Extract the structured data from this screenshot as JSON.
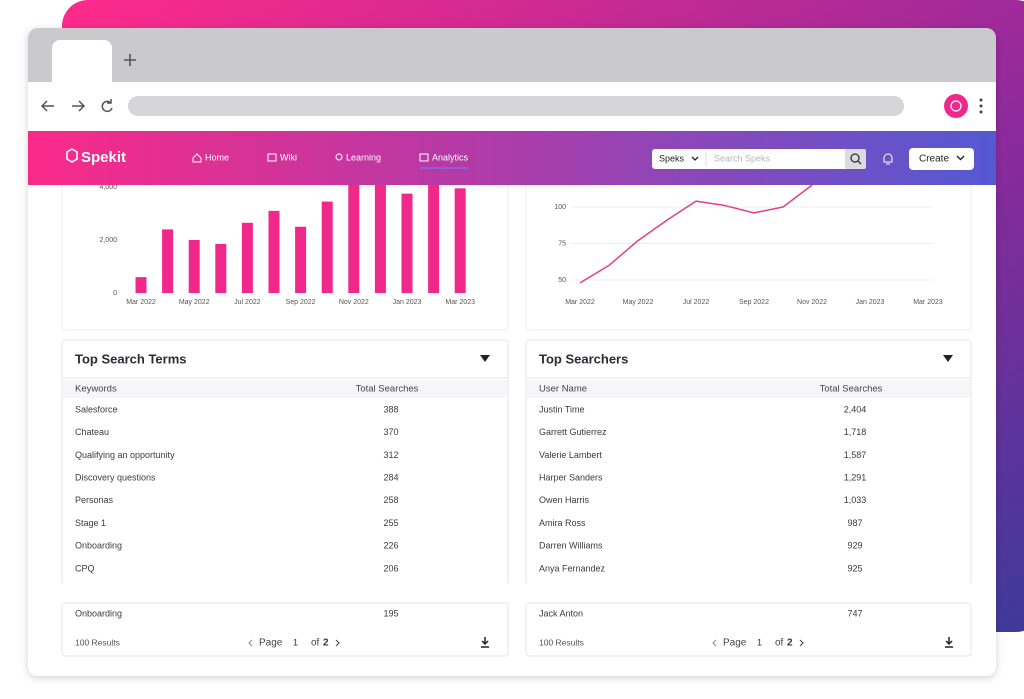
{
  "header": {
    "logo": "Spekit",
    "nav": [
      "Home",
      "Wiki",
      "Learning",
      "Analytics"
    ],
    "search_scope": "Speks",
    "search_placeholder": "Search Speks",
    "create": "Create"
  },
  "chart_data": [
    {
      "type": "bar",
      "categories": [
        "Mar 2022",
        null,
        "May 2022",
        null,
        "Jul 2022",
        null,
        "Sep 2022",
        null,
        "Nov 2022",
        null,
        "Jan 2023",
        null,
        "Mar 2023"
      ],
      "values": [
        600,
        2400,
        2000,
        1850,
        2650,
        3100,
        2500,
        3450,
        4400,
        4600,
        3750,
        4300,
        3950
      ],
      "color": "#f0288c",
      "ylim": [
        0,
        5000
      ],
      "yticks": [
        0,
        {
          "value": 2000,
          "label": "2,000"
        },
        {
          "value": 4000,
          "label": "4,000"
        }
      ],
      "grid": false
    },
    {
      "type": "line",
      "categories": [
        "Mar 2022",
        null,
        "May 2022",
        null,
        "Jul 2022",
        null,
        "Sep 2022",
        null,
        "Nov 2022",
        null,
        "Jan 2023",
        null,
        "Mar 2023"
      ],
      "values": [
        48,
        60,
        77,
        91,
        104,
        101,
        96,
        100,
        115,
        null,
        null,
        null,
        null
      ],
      "color": "#e4407f",
      "ylim": [
        40,
        130
      ],
      "yticks": [
        50,
        75,
        100
      ],
      "grid": true
    }
  ],
  "tables": [
    {
      "title": "Top Search Terms",
      "columns": [
        "Keywords",
        "Total Searches"
      ],
      "rows": [
        [
          "Salesforce",
          "388"
        ],
        [
          "Chateau",
          "370"
        ],
        [
          "Qualifying an opportunity",
          "312"
        ],
        [
          "Discovery questions",
          "284"
        ],
        [
          "Personas",
          "258"
        ],
        [
          "Stage 1",
          "255"
        ],
        [
          "Onboarding",
          "226"
        ],
        [
          "CPQ",
          "206"
        ],
        [
          "Onboarding",
          "195"
        ]
      ],
      "results": "100 Results",
      "pagination": {
        "label": "Page",
        "current": "1",
        "of": "of",
        "total": "2"
      }
    },
    {
      "title": "Top Searchers",
      "columns": [
        "User Name",
        "Total Searches"
      ],
      "rows": [
        [
          "Justin Time",
          "2,404"
        ],
        [
          "Garrett Gutierrez",
          "1,718"
        ],
        [
          "Valerie Lambert",
          "1,587"
        ],
        [
          "Harper Sanders",
          "1,291"
        ],
        [
          "Owen Harris",
          "1,033"
        ],
        [
          "Amira Ross",
          "987"
        ],
        [
          "Darren Williams",
          "929"
        ],
        [
          "Anya Fernandez",
          "925"
        ],
        [
          "Jack Anton",
          "747"
        ]
      ],
      "results": "100 Results",
      "pagination": {
        "label": "Page",
        "current": "1",
        "of": "of",
        "total": "2"
      }
    }
  ]
}
